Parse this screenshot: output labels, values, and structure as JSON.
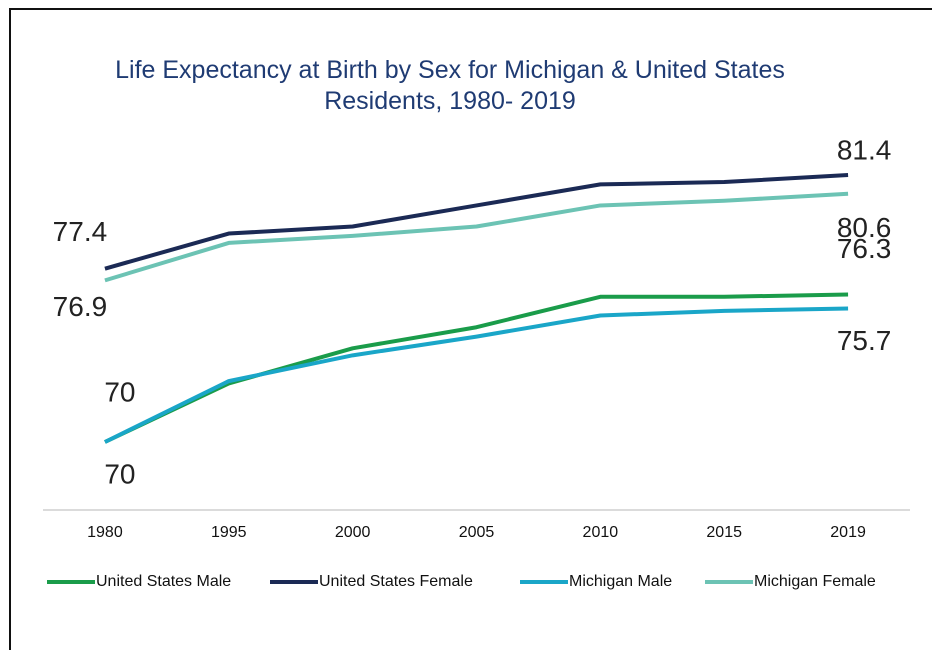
{
  "chart_data": {
    "type": "line",
    "title": "Life Expectancy at Birth by Sex for Michigan & United States Residents, 1980- 2019",
    "categories": [
      "1980",
      "1995",
      "2000",
      "2005",
      "2010",
      "2015",
      "2019"
    ],
    "series": [
      {
        "name": "United States Male",
        "color": "#1a9c4a",
        "values": [
          70,
          72.5,
          74.0,
          74.9,
          76.2,
          76.2,
          76.3
        ]
      },
      {
        "name": "United States Female",
        "color": "#1b2a55",
        "values": [
          77.4,
          78.9,
          79.2,
          80.1,
          81.0,
          81.1,
          81.4
        ]
      },
      {
        "name": "Michigan Male",
        "color": "#1aa6c8",
        "values": [
          70,
          72.6,
          73.7,
          74.5,
          75.4,
          75.6,
          75.7
        ]
      },
      {
        "name": "Michigan Female",
        "color": "#6cc3b4",
        "values": [
          76.9,
          78.5,
          78.8,
          79.2,
          80.1,
          80.3,
          80.6
        ]
      }
    ],
    "legend": "bottom"
  }
}
